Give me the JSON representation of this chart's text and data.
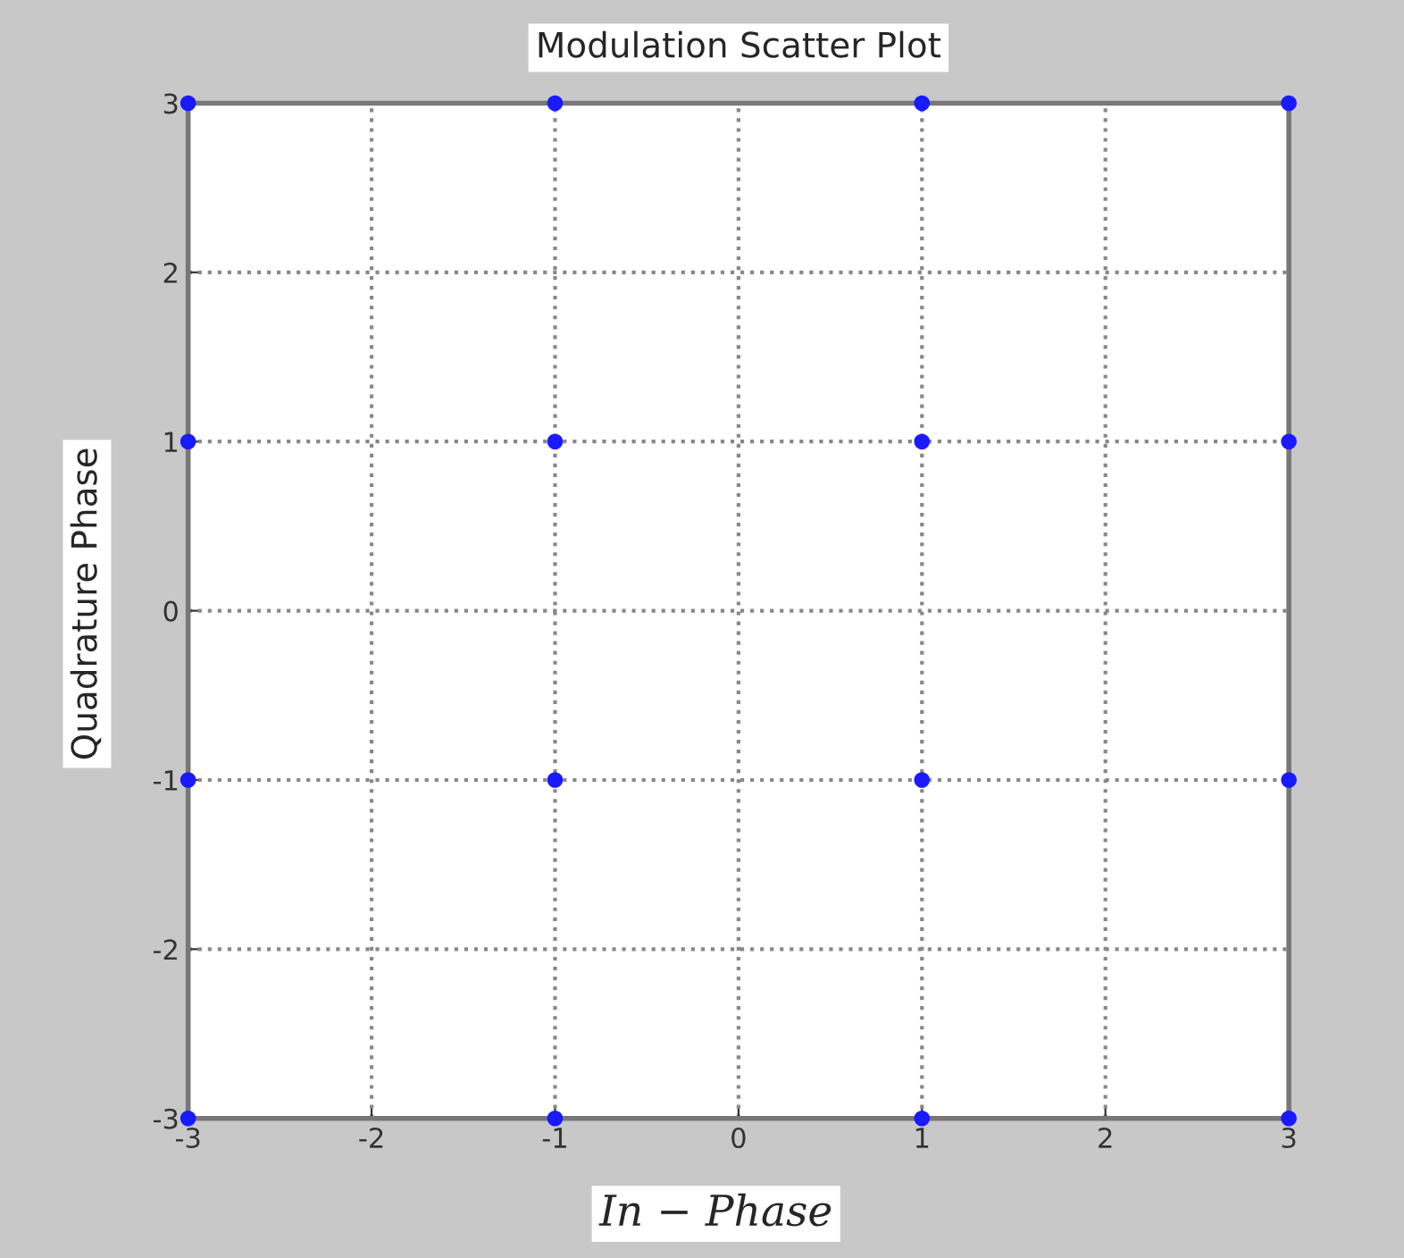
{
  "chart_data": {
    "type": "scatter",
    "title": "Modulation Scatter Plot",
    "xlabel": "In − Phase",
    "ylabel": "Quadrature Phase",
    "x": [
      -3,
      -3,
      -3,
      -3,
      -1,
      -1,
      -1,
      -1,
      1,
      1,
      1,
      1,
      3,
      3,
      3,
      3
    ],
    "series": [
      {
        "color": "#1a1aff",
        "values": [
          -3,
          -1,
          1,
          3,
          -3,
          -1,
          1,
          3,
          -3,
          -1,
          1,
          3,
          -3,
          -1,
          1,
          3
        ]
      }
    ],
    "xlim": [
      -3,
      3
    ],
    "ylim": [
      -3,
      3
    ],
    "xticks": [
      -3,
      -2,
      -1,
      0,
      1,
      2,
      3
    ],
    "yticks": [
      -3,
      -2,
      -1,
      0,
      1,
      2,
      3
    ],
    "grid": true,
    "marker": "circle"
  }
}
